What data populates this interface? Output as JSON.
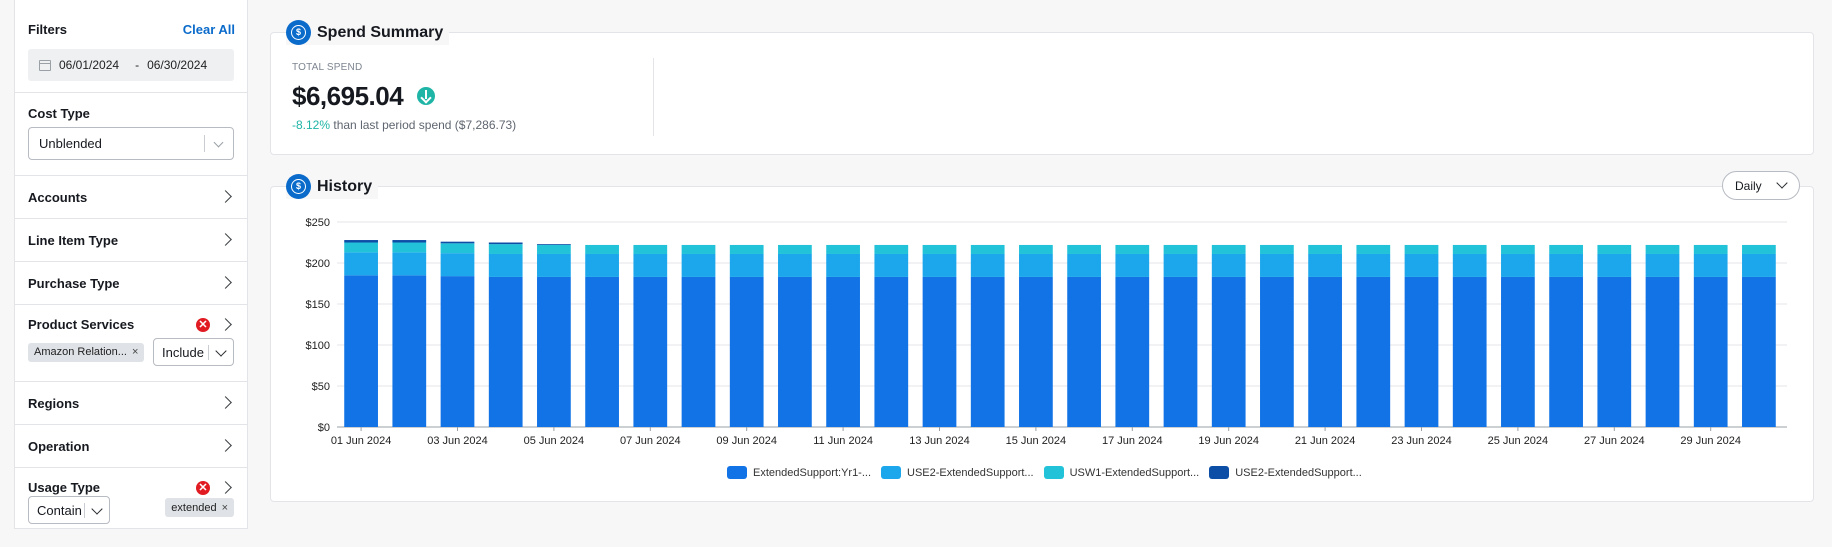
{
  "filters": {
    "title": "Filters",
    "clear_all": "Clear All",
    "date_from": "06/01/2024",
    "date_sep": "-",
    "date_to": "06/30/2024",
    "cost_type": {
      "label": "Cost Type",
      "value": "Unblended"
    },
    "accounts": "Accounts",
    "line_item_type": "Line Item Type",
    "purchase_type": "Purchase Type",
    "product_services": {
      "label": "Product Services",
      "token": "Amazon Relation...",
      "mode": "Include"
    },
    "regions": "Regions",
    "operation": "Operation",
    "usage_type": {
      "label": "Usage Type",
      "mode": "Contain",
      "token": "extended"
    }
  },
  "spend_summary": {
    "title": "Spend Summary",
    "total_label": "TOTAL SPEND",
    "total_value": "$6,695.04",
    "change_pct": "-8.12%",
    "change_text": "than last period spend ($7,286.73)"
  },
  "history": {
    "title": "History",
    "granularity": "Daily"
  },
  "colors": {
    "accent": "#0b6bcb",
    "s1": "#1273e6",
    "s2": "#1ca7ec",
    "s3": "#22c3d8",
    "s4": "#0d4ea6",
    "positive": "#1fb5a6"
  },
  "chart_data": {
    "type": "bar",
    "stacked": true,
    "x": [
      "01 Jun 2024",
      "02 Jun 2024",
      "03 Jun 2024",
      "04 Jun 2024",
      "05 Jun 2024",
      "06 Jun 2024",
      "07 Jun 2024",
      "08 Jun 2024",
      "09 Jun 2024",
      "10 Jun 2024",
      "11 Jun 2024",
      "12 Jun 2024",
      "13 Jun 2024",
      "14 Jun 2024",
      "15 Jun 2024",
      "16 Jun 2024",
      "17 Jun 2024",
      "18 Jun 2024",
      "19 Jun 2024",
      "20 Jun 2024",
      "21 Jun 2024",
      "22 Jun 2024",
      "23 Jun 2024",
      "24 Jun 2024",
      "25 Jun 2024",
      "26 Jun 2024",
      "27 Jun 2024",
      "28 Jun 2024",
      "29 Jun 2024",
      "30 Jun 2024"
    ],
    "x_tick_labels": [
      "01 Jun 2024",
      "03 Jun 2024",
      "05 Jun 2024",
      "07 Jun 2024",
      "09 Jun 2024",
      "11 Jun 2024",
      "13 Jun 2024",
      "15 Jun 2024",
      "17 Jun 2024",
      "19 Jun 2024",
      "21 Jun 2024",
      "23 Jun 2024",
      "25 Jun 2024",
      "27 Jun 2024",
      "29 Jun 2024"
    ],
    "y_ticks": [
      "$0",
      "$50",
      "$100",
      "$150",
      "$200",
      "$250"
    ],
    "ylim": [
      0,
      250
    ],
    "series": [
      {
        "name": "ExtendedSupport:Yr1-...",
        "color": "#1273e6",
        "values": [
          185,
          185,
          184,
          183,
          183,
          183,
          183,
          183,
          183,
          183,
          183,
          183,
          183,
          183,
          183,
          183,
          183,
          183,
          183,
          183,
          183,
          183,
          183,
          183,
          183,
          183,
          183,
          183,
          183,
          183
        ]
      },
      {
        "name": "USE2-ExtendedSupport...",
        "color": "#1ca7ec",
        "values": [
          28,
          28,
          28,
          28,
          28,
          28,
          28,
          28,
          28,
          28,
          28,
          28,
          28,
          28,
          28,
          28,
          28,
          28,
          28,
          28,
          28,
          28,
          28,
          28,
          28,
          28,
          28,
          28,
          28,
          28
        ]
      },
      {
        "name": "USW1-ExtendedSupport...",
        "color": "#22c3d8",
        "values": [
          12,
          12,
          12,
          12,
          11,
          11,
          11,
          11,
          11,
          11,
          11,
          11,
          11,
          11,
          11,
          11,
          11,
          11,
          11,
          11,
          11,
          11,
          11,
          11,
          11,
          11,
          11,
          11,
          11,
          11
        ]
      },
      {
        "name": "USE2-ExtendedSupport...",
        "color": "#0d4ea6",
        "values": [
          3,
          3,
          2,
          2,
          1,
          0,
          0,
          0,
          0,
          0,
          0,
          0,
          0,
          0,
          0,
          0,
          0,
          0,
          0,
          0,
          0,
          0,
          0,
          0,
          0,
          0,
          0,
          0,
          0,
          0
        ]
      }
    ],
    "grid": true,
    "legend_position": "bottom"
  }
}
